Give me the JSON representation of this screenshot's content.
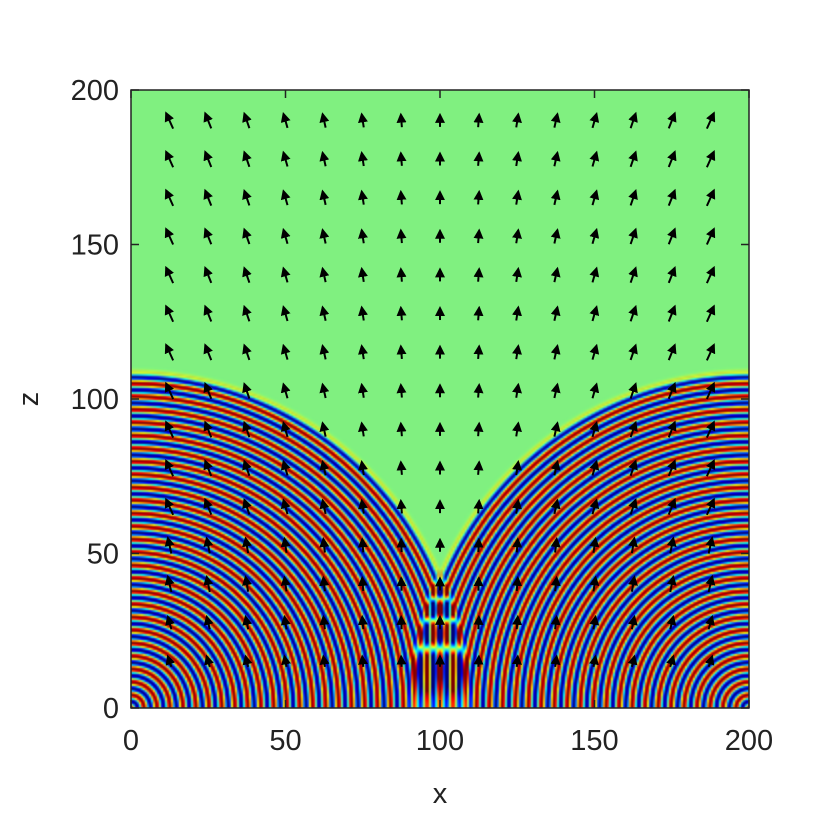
{
  "chart_data": {
    "type": "heatmap",
    "title": "",
    "xlabel": "x",
    "ylabel": "z",
    "xlim": [
      0,
      200
    ],
    "ylim": [
      0,
      200
    ],
    "x_ticks": [
      0,
      50,
      100,
      150,
      200
    ],
    "y_ticks": [
      0,
      50,
      100,
      150,
      200
    ],
    "x_tick_labels": [
      "0",
      "50",
      "100",
      "150",
      "200"
    ],
    "y_tick_labels": [
      "0",
      "50",
      "100",
      "150",
      "200"
    ],
    "grid": false,
    "field": {
      "description_colors": {
        "background": "#80f080",
        "high": "#e02010",
        "low": "#1020d0",
        "mid_yellow": "#f0f020",
        "mid_cyan": "#30c0e0"
      },
      "sources": [
        [
          0,
          0
        ],
        [
          200,
          0
        ]
      ],
      "front_radius": 111,
      "ring_wavelength": 4.2,
      "cusp": [
        100,
        60
      ]
    },
    "quiver": {
      "x_positions": [
        12.5,
        25,
        37.5,
        50,
        62.5,
        75,
        87.5,
        100,
        112.5,
        125,
        137.5,
        150,
        162.5,
        175,
        187.5
      ],
      "z_positions": [
        15,
        27.5,
        40,
        52.5,
        65,
        77.5,
        90,
        102.5,
        115,
        127.5,
        140,
        152.5,
        165,
        177.5,
        190
      ]
    }
  }
}
